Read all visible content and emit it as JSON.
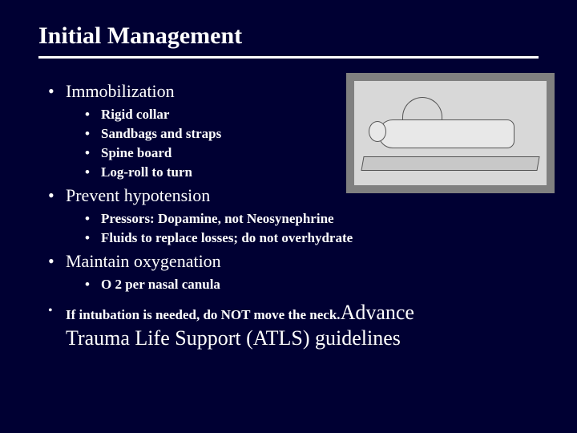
{
  "title": "Initial Management",
  "sections": [
    {
      "heading": "Immobilization",
      "items": [
        "Rigid collar",
        "Sandbags and straps",
        "Spine board",
        "Log-roll to turn"
      ]
    },
    {
      "heading": "Prevent hypotension",
      "items": [
        "Pressors: Dopamine, not Neosynephrine",
        "Fluids to replace losses; do not overhydrate"
      ]
    },
    {
      "heading": "Maintain oxygenation",
      "items": [
        "O 2 per nasal canula"
      ]
    }
  ],
  "final": {
    "lead": "If intubation is needed, do NOT move the neck.",
    "big1": "Advance",
    "big2": "Trauma Life Support (ATLS) guidelines"
  },
  "colors": {
    "background": "#000033",
    "text": "#ffffff",
    "divider": "#ffffff",
    "illus_border": "#808080",
    "illus_bg": "#d8d8d8"
  },
  "fonts": {
    "title_size": 30,
    "lvl1_size": 22,
    "lvl2_size": 17,
    "final_big_size": 26
  }
}
